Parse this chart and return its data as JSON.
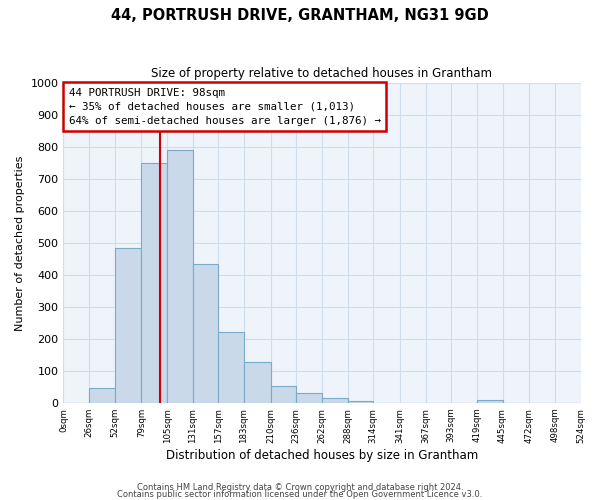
{
  "title": "44, PORTRUSH DRIVE, GRANTHAM, NG31 9GD",
  "subtitle": "Size of property relative to detached houses in Grantham",
  "xlabel": "Distribution of detached houses by size in Grantham",
  "ylabel": "Number of detached properties",
  "bar_edges": [
    0,
    26,
    52,
    79,
    105,
    131,
    157,
    183,
    210,
    236,
    262,
    288,
    314,
    341,
    367,
    393,
    419,
    445,
    472,
    498,
    524
  ],
  "bar_heights": [
    0,
    45,
    485,
    750,
    790,
    435,
    220,
    127,
    52,
    30,
    15,
    5,
    0,
    0,
    0,
    0,
    8,
    0,
    0,
    0
  ],
  "bar_color": "#c9d9ea",
  "bar_edge_color": "#7aaac8",
  "property_line_x": 98,
  "property_line_color": "#cc0000",
  "annotation_box_color": "#cc0000",
  "annotation_title": "44 PORTRUSH DRIVE: 98sqm",
  "annotation_line1": "← 35% of detached houses are smaller (1,013)",
  "annotation_line2": "64% of semi-detached houses are larger (1,876) →",
  "ylim": [
    0,
    1000
  ],
  "yticks": [
    0,
    100,
    200,
    300,
    400,
    500,
    600,
    700,
    800,
    900,
    1000
  ],
  "xtick_labels": [
    "0sqm",
    "26sqm",
    "52sqm",
    "79sqm",
    "105sqm",
    "131sqm",
    "157sqm",
    "183sqm",
    "210sqm",
    "236sqm",
    "262sqm",
    "288sqm",
    "314sqm",
    "341sqm",
    "367sqm",
    "393sqm",
    "419sqm",
    "445sqm",
    "472sqm",
    "498sqm",
    "524sqm"
  ],
  "footer1": "Contains HM Land Registry data © Crown copyright and database right 2024.",
  "footer2": "Contains public sector information licensed under the Open Government Licence v3.0.",
  "grid_color": "#ccddee",
  "plot_bg_color": "#eef4fa",
  "fig_bg_color": "#ffffff"
}
